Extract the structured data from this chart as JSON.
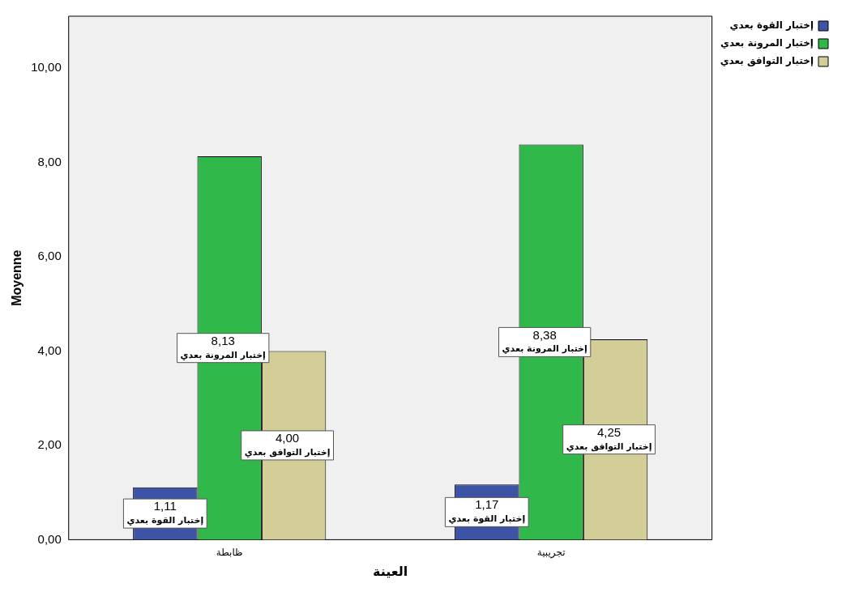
{
  "chart_data": {
    "type": "bar",
    "categories": [
      "ظابطة",
      "تجريبية"
    ],
    "xlabel": "العينة",
    "ylabel": "Moyenne",
    "series": [
      {
        "name": "إختبار القوة بعدي",
        "color": "#3c53a6",
        "values": [
          1.11,
          1.17
        ],
        "value_labels": [
          "1,11",
          "1,17"
        ]
      },
      {
        "name": "إختبار المرونة بعدي",
        "color": "#30b94a",
        "values": [
          8.13,
          8.38
        ],
        "value_labels": [
          "8,13",
          "8,38"
        ]
      },
      {
        "name": "إختبار التوافق بعدي",
        "color": "#d3ce98",
        "values": [
          4.0,
          4.25
        ],
        "value_labels": [
          "4,00",
          "4,25"
        ]
      }
    ],
    "ylim": [
      0,
      11.1
    ],
    "yticks": [
      {
        "value": 0,
        "label": "0,00"
      },
      {
        "value": 2,
        "label": "2,00"
      },
      {
        "value": 4,
        "label": "4,00"
      },
      {
        "value": 6,
        "label": "6,00"
      },
      {
        "value": 8,
        "label": "8,00"
      },
      {
        "value": 10,
        "label": "10,00"
      }
    ],
    "grid": false,
    "legend": "top right"
  }
}
